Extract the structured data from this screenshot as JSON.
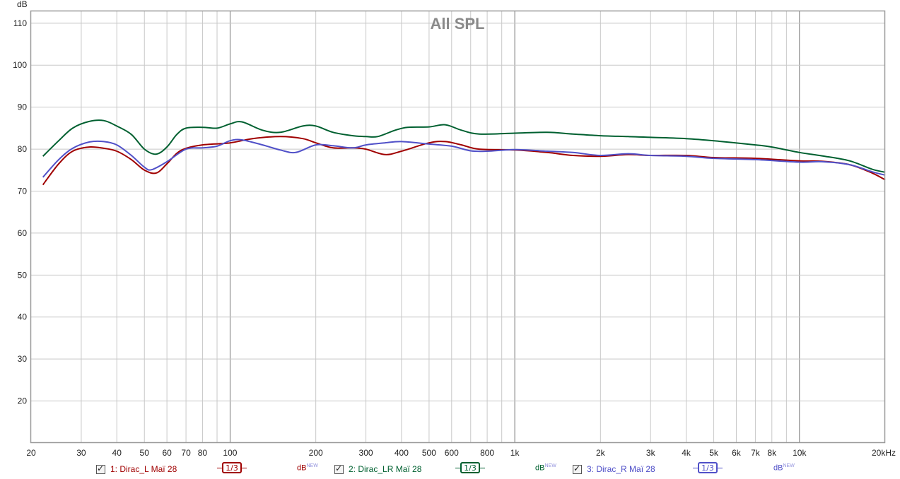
{
  "chart_data": {
    "type": "line",
    "title": "All SPL",
    "ylabel": "dB",
    "xlabel": "",
    "xscale": "log",
    "xlim": [
      20,
      20000
    ],
    "ylim": [
      10,
      113
    ],
    "grid": true,
    "y_ticks": [
      20,
      30,
      40,
      50,
      60,
      70,
      80,
      90,
      100,
      110
    ],
    "x_ticks": [
      {
        "value": 20,
        "label": "20"
      },
      {
        "value": 30,
        "label": "30"
      },
      {
        "value": 40,
        "label": "40"
      },
      {
        "value": 50,
        "label": "50"
      },
      {
        "value": 60,
        "label": "60"
      },
      {
        "value": 70,
        "label": "70"
      },
      {
        "value": 80,
        "label": "80"
      },
      {
        "value": 100,
        "label": "100"
      },
      {
        "value": 200,
        "label": "200"
      },
      {
        "value": 300,
        "label": "300"
      },
      {
        "value": 400,
        "label": "400"
      },
      {
        "value": 500,
        "label": "500"
      },
      {
        "value": 600,
        "label": "600"
      },
      {
        "value": 800,
        "label": "800"
      },
      {
        "value": 1000,
        "label": "1k"
      },
      {
        "value": 2000,
        "label": "2k"
      },
      {
        "value": 3000,
        "label": "3k"
      },
      {
        "value": 4000,
        "label": "4k"
      },
      {
        "value": 5000,
        "label": "5k"
      },
      {
        "value": 6000,
        "label": "6k"
      },
      {
        "value": 7000,
        "label": "7k"
      },
      {
        "value": 8000,
        "label": "8k"
      },
      {
        "value": 10000,
        "label": "10k"
      },
      {
        "value": 20000,
        "label": "20kHz"
      }
    ],
    "series": [
      {
        "name": "1: Dirac_L Maï 28",
        "color": "#a00000",
        "points": [
          [
            22,
            71.5
          ],
          [
            25,
            76.5
          ],
          [
            28,
            79.5
          ],
          [
            32,
            80.5
          ],
          [
            36,
            80.2
          ],
          [
            40,
            79.5
          ],
          [
            45,
            77.5
          ],
          [
            50,
            75
          ],
          [
            55,
            74.3
          ],
          [
            60,
            76.5
          ],
          [
            65,
            79
          ],
          [
            70,
            80.2
          ],
          [
            80,
            81
          ],
          [
            100,
            81.5
          ],
          [
            120,
            82.5
          ],
          [
            150,
            83
          ],
          [
            180,
            82.5
          ],
          [
            200,
            81.5
          ],
          [
            230,
            80.3
          ],
          [
            270,
            80.3
          ],
          [
            300,
            80
          ],
          [
            350,
            78.7
          ],
          [
            400,
            79.5
          ],
          [
            500,
            81.5
          ],
          [
            570,
            81.8
          ],
          [
            650,
            81
          ],
          [
            750,
            80
          ],
          [
            1000,
            79.8
          ],
          [
            1300,
            79.2
          ],
          [
            1600,
            78.5
          ],
          [
            2000,
            78.3
          ],
          [
            2500,
            78.7
          ],
          [
            3000,
            78.5
          ],
          [
            4000,
            78.5
          ],
          [
            5000,
            78
          ],
          [
            7000,
            77.8
          ],
          [
            10000,
            77.2
          ],
          [
            12000,
            77.1
          ],
          [
            15000,
            76.3
          ],
          [
            18000,
            74.3
          ],
          [
            20000,
            72.7
          ]
        ]
      },
      {
        "name": "2: Dirac_LR Maï 28",
        "color": "#006030",
        "points": [
          [
            22,
            78.3
          ],
          [
            25,
            82
          ],
          [
            28,
            85
          ],
          [
            32,
            86.6
          ],
          [
            36,
            86.8
          ],
          [
            40,
            85.5
          ],
          [
            45,
            83.5
          ],
          [
            50,
            80
          ],
          [
            55,
            78.8
          ],
          [
            60,
            80.5
          ],
          [
            65,
            83.5
          ],
          [
            70,
            85
          ],
          [
            80,
            85.2
          ],
          [
            90,
            85
          ],
          [
            100,
            86
          ],
          [
            110,
            86.5
          ],
          [
            130,
            84.5
          ],
          [
            150,
            84
          ],
          [
            180,
            85.5
          ],
          [
            200,
            85.5
          ],
          [
            230,
            84
          ],
          [
            270,
            83.2
          ],
          [
            300,
            83
          ],
          [
            330,
            83
          ],
          [
            380,
            84.5
          ],
          [
            420,
            85.2
          ],
          [
            500,
            85.3
          ],
          [
            570,
            85.8
          ],
          [
            650,
            84.5
          ],
          [
            750,
            83.6
          ],
          [
            1000,
            83.8
          ],
          [
            1300,
            84
          ],
          [
            1600,
            83.6
          ],
          [
            2000,
            83.2
          ],
          [
            2500,
            83
          ],
          [
            3000,
            82.8
          ],
          [
            4000,
            82.5
          ],
          [
            5000,
            82
          ],
          [
            7000,
            81
          ],
          [
            8000,
            80.5
          ],
          [
            10000,
            79.2
          ],
          [
            12000,
            78.4
          ],
          [
            15000,
            77.2
          ],
          [
            18000,
            75.2
          ],
          [
            20000,
            74.5
          ]
        ]
      },
      {
        "name": "3: Dirac_R Maï 28",
        "color": "#5050c8",
        "points": [
          [
            22,
            73.3
          ],
          [
            25,
            77.5
          ],
          [
            28,
            80.2
          ],
          [
            32,
            81.7
          ],
          [
            36,
            81.8
          ],
          [
            40,
            81
          ],
          [
            45,
            78.5
          ],
          [
            50,
            75.7
          ],
          [
            53,
            75.1
          ],
          [
            60,
            77
          ],
          [
            70,
            80
          ],
          [
            80,
            80.3
          ],
          [
            90,
            80.7
          ],
          [
            100,
            82
          ],
          [
            110,
            82.2
          ],
          [
            130,
            81
          ],
          [
            150,
            79.8
          ],
          [
            170,
            79.2
          ],
          [
            200,
            81
          ],
          [
            230,
            80.8
          ],
          [
            270,
            80.3
          ],
          [
            300,
            81
          ],
          [
            350,
            81.5
          ],
          [
            400,
            81.8
          ],
          [
            500,
            81.2
          ],
          [
            600,
            80.7
          ],
          [
            700,
            79.6
          ],
          [
            800,
            79.5
          ],
          [
            1000,
            79.9
          ],
          [
            1300,
            79.5
          ],
          [
            1600,
            79.2
          ],
          [
            2000,
            78.5
          ],
          [
            2500,
            78.9
          ],
          [
            3000,
            78.5
          ],
          [
            4000,
            78.3
          ],
          [
            5000,
            77.8
          ],
          [
            7000,
            77.5
          ],
          [
            10000,
            76.9
          ],
          [
            12000,
            77
          ],
          [
            15000,
            76.3
          ],
          [
            18000,
            74.6
          ],
          [
            20000,
            73.8
          ]
        ]
      }
    ]
  },
  "legend": [
    {
      "label": "1: Dirac_L Maï 28",
      "smoothing": "1/3",
      "units": "dB",
      "units_badge": "NEW",
      "color": "#a00000"
    },
    {
      "label": "2: Dirac_LR Maï 28",
      "smoothing": "1/3",
      "units": "dB",
      "units_badge": "NEW",
      "color": "#006030"
    },
    {
      "label": "3: Dirac_R Maï 28",
      "smoothing": "1/3",
      "units": "dB",
      "units_badge": "NEW",
      "color": "#5050c8"
    }
  ]
}
